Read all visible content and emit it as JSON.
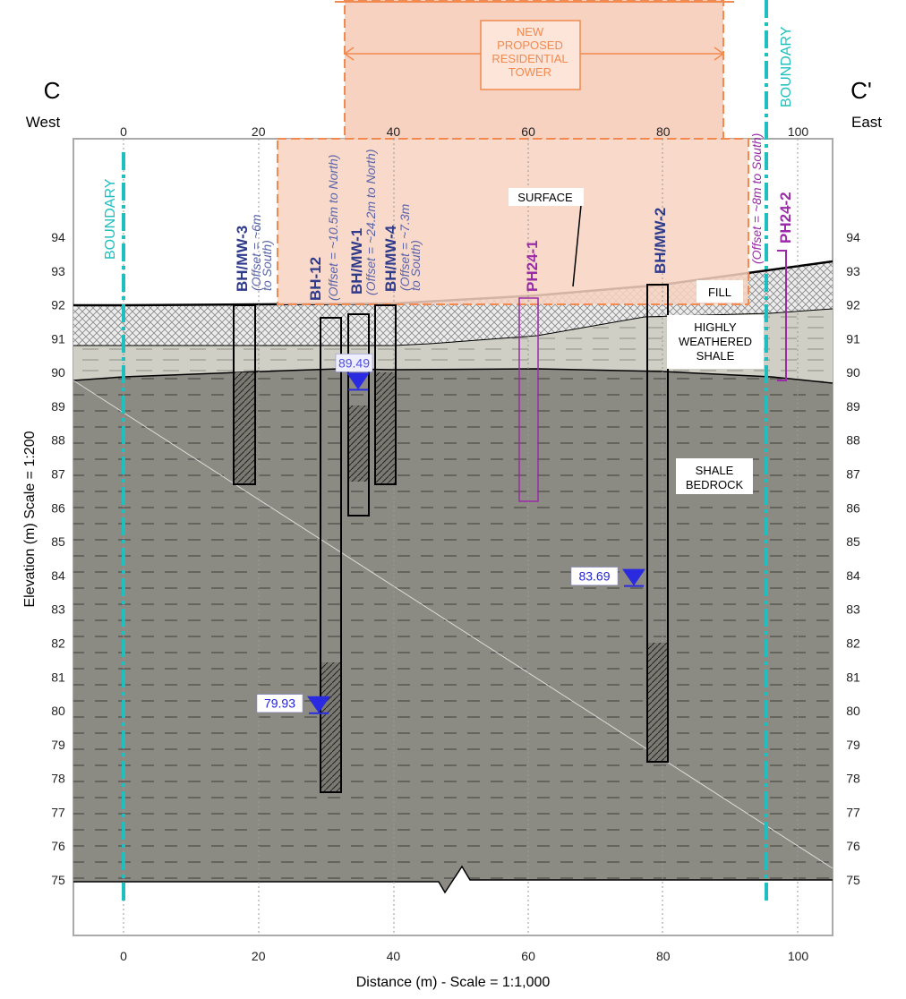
{
  "section": {
    "left_label": "C",
    "left_dir": "West",
    "right_label": "C'",
    "right_dir": "East"
  },
  "x_axis": {
    "title": "Distance (m) - Scale = 1:1,000",
    "ticks": [
      0,
      20,
      40,
      60,
      80,
      100
    ]
  },
  "y_axis": {
    "title": "Elevation (m) Scale = 1:200",
    "ticks": [
      75,
      76,
      77,
      78,
      79,
      80,
      81,
      82,
      83,
      84,
      85,
      86,
      87,
      88,
      89,
      90,
      91,
      92,
      93,
      94
    ]
  },
  "boundaries": [
    "BOUNDARY",
    "BOUNDARY"
  ],
  "tower": [
    "NEW",
    "PROPOSED",
    "RESIDENTIAL",
    "TOWER"
  ],
  "surface": "SURFACE",
  "layers": [
    [
      "FILL"
    ],
    [
      "HIGHLY",
      "WEATHERED",
      "SHALE"
    ],
    [
      "SHALE",
      "BEDROCK"
    ]
  ],
  "boreholes": [
    {
      "name": "BH/MW-3",
      "offset": [
        "(Offset = ~6m",
        "to South)"
      ]
    },
    {
      "name": "BH-12",
      "offset": [
        "(Offset = ~10.5m to North)"
      ]
    },
    {
      "name": "BH/MW-1",
      "offset": [
        "(Offset = ~24.2m to North)"
      ]
    },
    {
      "name": "BH/MW-4",
      "offset": [
        "(Offset = ~7.3m",
        "to South)"
      ]
    },
    {
      "name": "PH24-1"
    },
    {
      "name": "BH/MW-2"
    },
    {
      "name": "PH24-2",
      "offset": [
        "(Offset = ~8m to South)"
      ]
    }
  ],
  "water_levels": [
    89.49,
    79.93,
    83.69
  ]
}
